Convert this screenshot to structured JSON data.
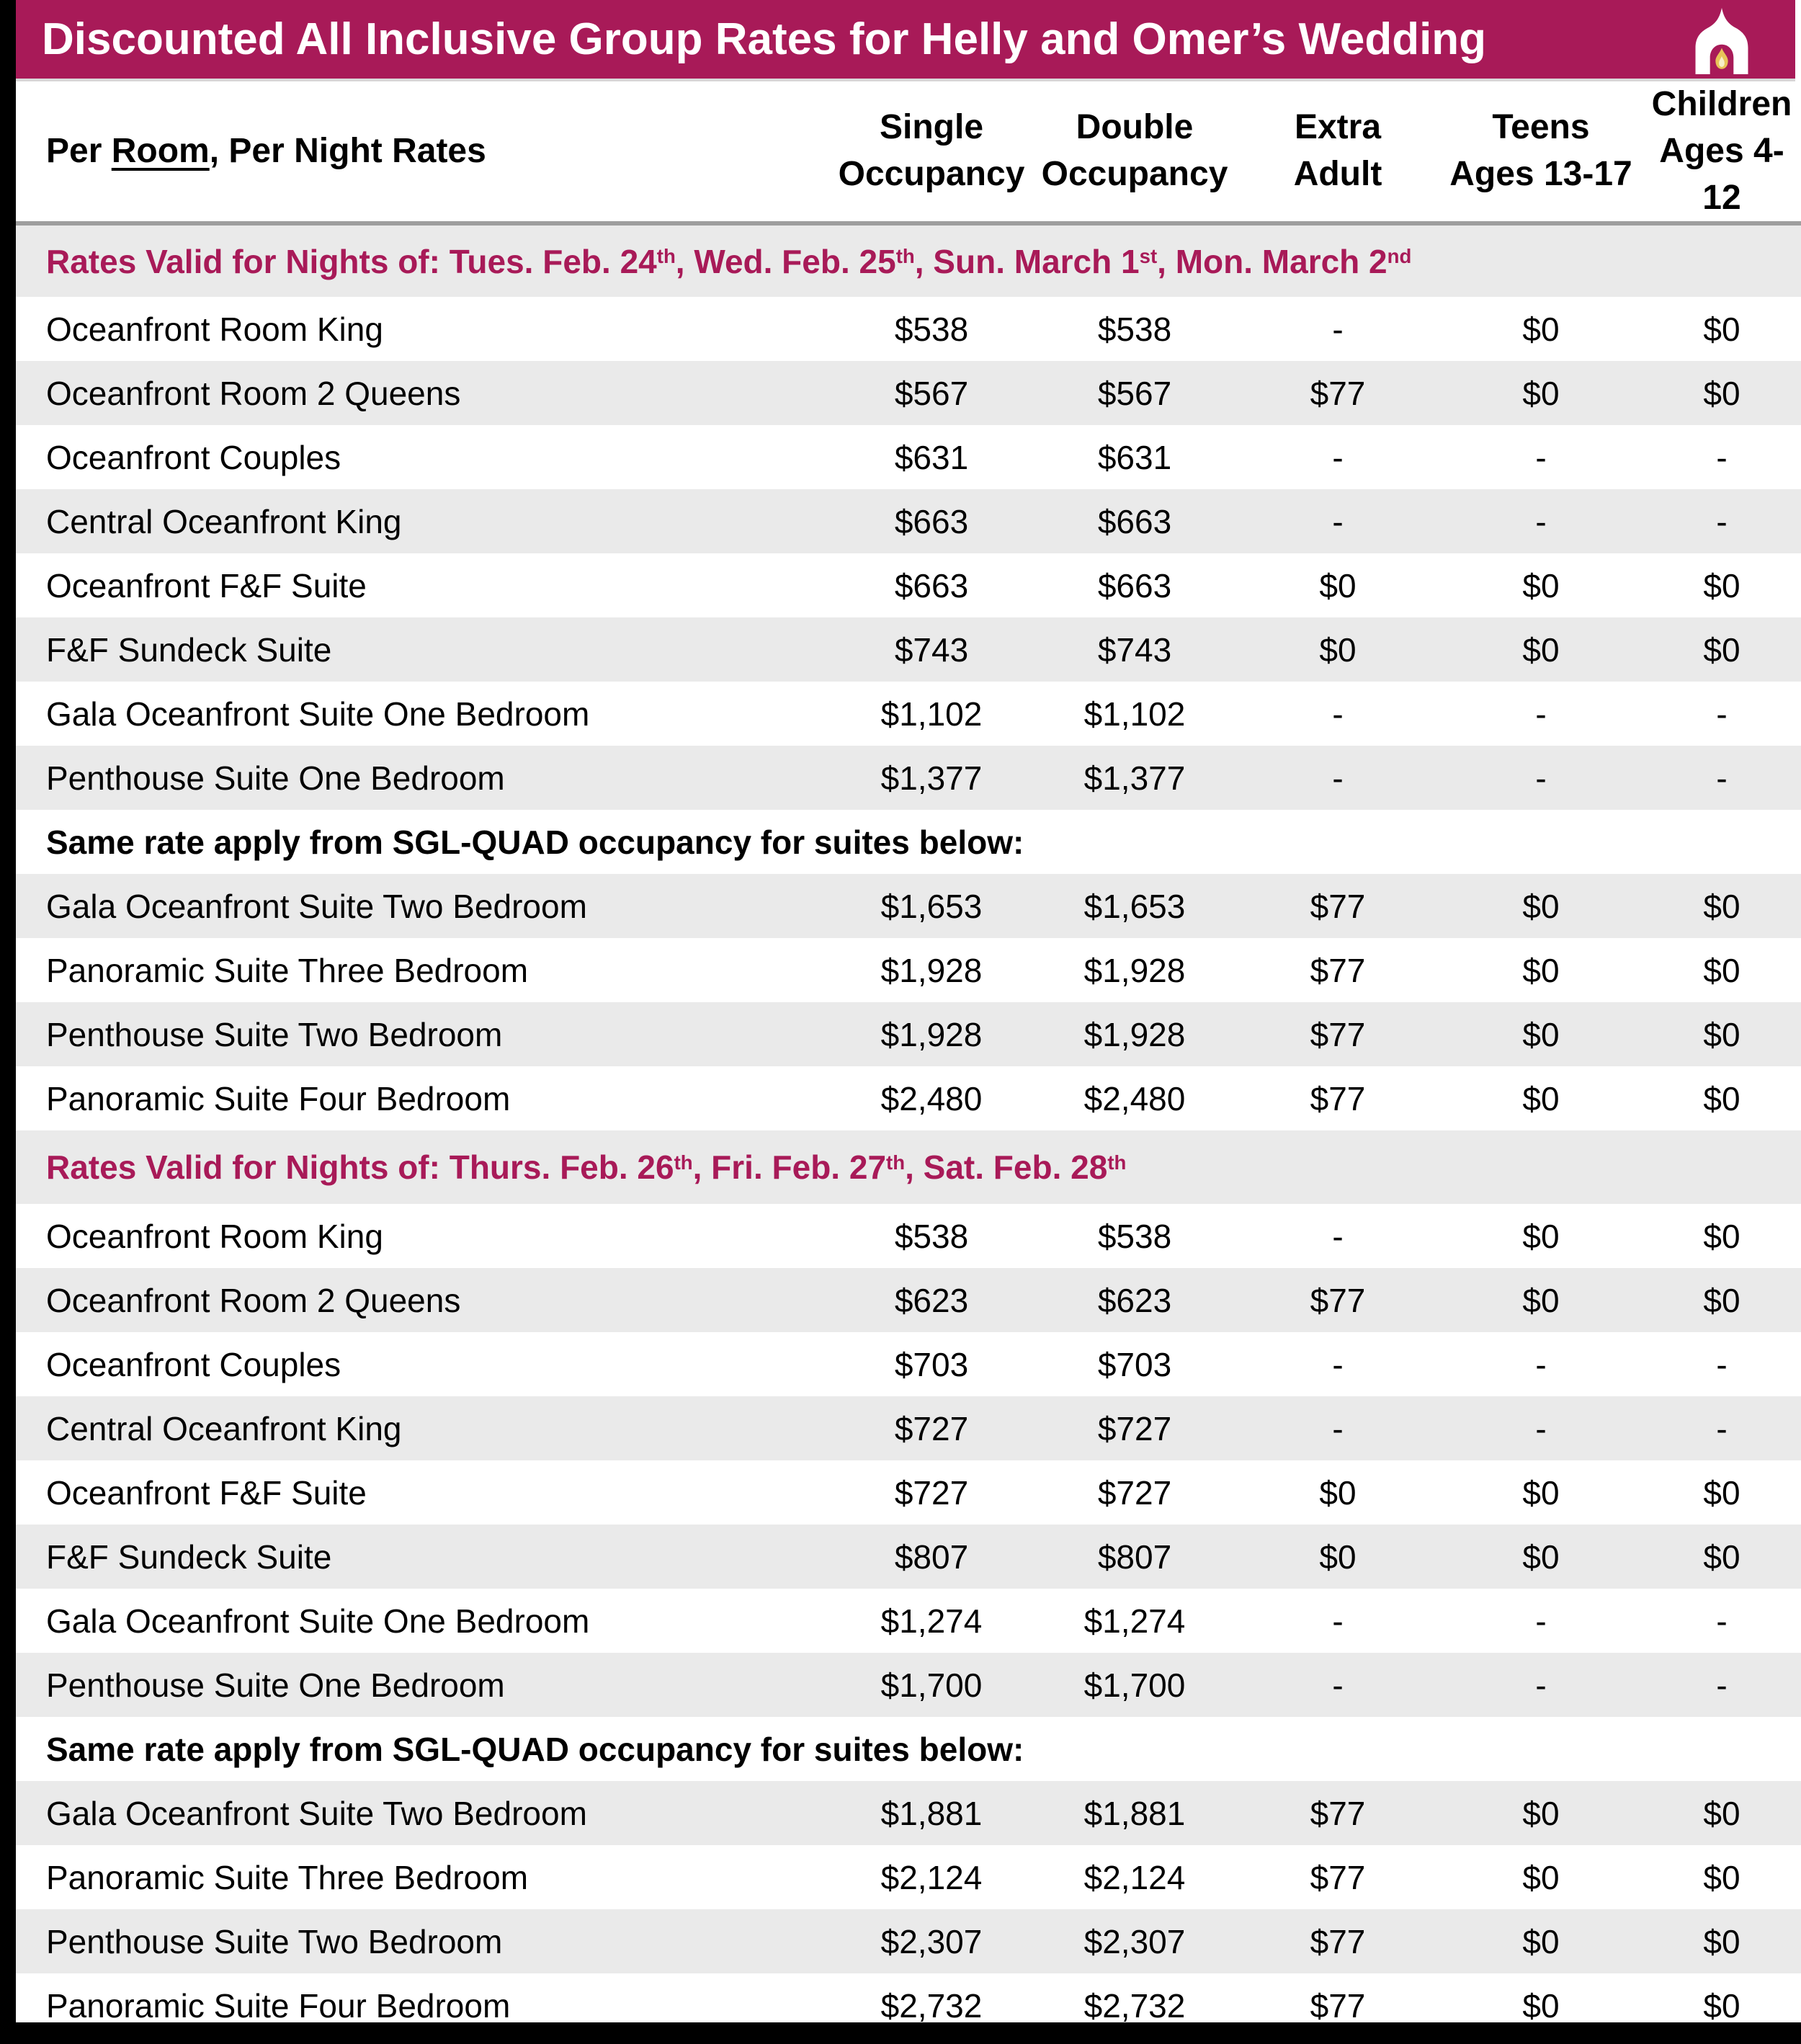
{
  "header": {
    "title": "Discounted All Inclusive Group Rates for Helly and Omer’s Wedding",
    "logo_icon": "arch-with-flame"
  },
  "colors": {
    "brand_magenta": "#A81A58",
    "row_alt_gray": "#EAEAEA",
    "header_divider_gray": "#9E9E9E",
    "flame_gold": "#E8C358",
    "flame_gold_light": "#F7EFC9",
    "frame_black": "#000000",
    "text_black": "#000000",
    "title_text_white": "#FFFFFF"
  },
  "columns": {
    "room_label": {
      "pre": "Per ",
      "underline": "Room",
      "post": ", Per Night Rates"
    },
    "rate_columns": [
      {
        "line1": "Single",
        "line2": "Occupancy"
      },
      {
        "line1": "Double",
        "line2": "Occupancy"
      },
      {
        "line1": "Extra",
        "line2": "Adult"
      },
      {
        "line1": "Teens",
        "line2": "Ages 13-17"
      },
      {
        "line1": "Children",
        "line2": "Ages 4-12"
      }
    ]
  },
  "sections": [
    {
      "title_segments": [
        {
          "text": "Rates Valid for Nights of: Tues. Feb. 24"
        },
        {
          "text": "th",
          "sup": true
        },
        {
          "text": ", Wed. Feb. 25"
        },
        {
          "text": "th",
          "sup": true
        },
        {
          "text": ", Sun. March 1"
        },
        {
          "text": "st",
          "sup": true
        },
        {
          "text": ", Mon. March 2"
        },
        {
          "text": "nd",
          "sup": true
        }
      ],
      "rows": [
        {
          "name": "Oceanfront Room King",
          "values": [
            "$538",
            "$538",
            "-",
            "$0",
            "$0"
          ]
        },
        {
          "name": "Oceanfront Room 2 Queens",
          "values": [
            "$567",
            "$567",
            "$77",
            "$0",
            "$0"
          ]
        },
        {
          "name": "Oceanfront Couples",
          "values": [
            "$631",
            "$631",
            "-",
            "-",
            "-"
          ]
        },
        {
          "name": "Central Oceanfront King",
          "values": [
            "$663",
            "$663",
            "-",
            "-",
            "-"
          ]
        },
        {
          "name": "Oceanfront F&F Suite",
          "values": [
            "$663",
            "$663",
            "$0",
            "$0",
            "$0"
          ]
        },
        {
          "name": "F&F Sundeck Suite",
          "values": [
            "$743",
            "$743",
            "$0",
            "$0",
            "$0"
          ]
        },
        {
          "name": "Gala Oceanfront Suite One Bedroom",
          "values": [
            "$1,102",
            "$1,102",
            "-",
            "-",
            "-"
          ]
        },
        {
          "name": "Penthouse Suite One Bedroom",
          "values": [
            "$1,377",
            "$1,377",
            "-",
            "-",
            "-"
          ]
        }
      ],
      "note": "Same rate apply from SGL-QUAD occupancy for suites below:",
      "suite_rows": [
        {
          "name": "Gala Oceanfront Suite Two Bedroom",
          "values": [
            "$1,653",
            "$1,653",
            "$77",
            "$0",
            "$0"
          ]
        },
        {
          "name": "Panoramic Suite Three Bedroom",
          "values": [
            "$1,928",
            "$1,928",
            "$77",
            "$0",
            "$0"
          ]
        },
        {
          "name": "Penthouse Suite Two Bedroom",
          "values": [
            "$1,928",
            "$1,928",
            "$77",
            "$0",
            "$0"
          ]
        },
        {
          "name": "Panoramic Suite Four Bedroom",
          "values": [
            "$2,480",
            "$2,480",
            "$77",
            "$0",
            "$0"
          ]
        }
      ]
    },
    {
      "title_segments": [
        {
          "text": "Rates Valid for Nights of: Thurs. Feb. 26"
        },
        {
          "text": "th",
          "sup": true
        },
        {
          "text": ", Fri. Feb. 27"
        },
        {
          "text": "th",
          "sup": true
        },
        {
          "text": ", Sat. Feb. 28"
        },
        {
          "text": "th",
          "sup": true
        }
      ],
      "rows": [
        {
          "name": "Oceanfront Room King",
          "values": [
            "$538",
            "$538",
            "-",
            "$0",
            "$0"
          ]
        },
        {
          "name": "Oceanfront Room 2 Queens",
          "values": [
            "$623",
            "$623",
            "$77",
            "$0",
            "$0"
          ]
        },
        {
          "name": "Oceanfront Couples",
          "values": [
            "$703",
            "$703",
            "-",
            "-",
            "-"
          ]
        },
        {
          "name": "Central Oceanfront King",
          "values": [
            "$727",
            "$727",
            "-",
            "-",
            "-"
          ]
        },
        {
          "name": "Oceanfront F&F Suite",
          "values": [
            "$727",
            "$727",
            "$0",
            "$0",
            "$0"
          ]
        },
        {
          "name": "F&F Sundeck Suite",
          "values": [
            "$807",
            "$807",
            "$0",
            "$0",
            "$0"
          ]
        },
        {
          "name": "Gala Oceanfront Suite One Bedroom",
          "values": [
            "$1,274",
            "$1,274",
            "-",
            "-",
            "-"
          ]
        },
        {
          "name": "Penthouse Suite One Bedroom",
          "values": [
            "$1,700",
            "$1,700",
            "-",
            "-",
            "-"
          ]
        }
      ],
      "note": "Same rate apply from SGL-QUAD occupancy for suites below:",
      "suite_rows": [
        {
          "name": "Gala Oceanfront Suite Two Bedroom",
          "values": [
            "$1,881",
            "$1,881",
            "$77",
            "$0",
            "$0"
          ]
        },
        {
          "name": "Panoramic Suite Three Bedroom",
          "values": [
            "$2,124",
            "$2,124",
            "$77",
            "$0",
            "$0"
          ]
        },
        {
          "name": "Penthouse Suite Two Bedroom",
          "values": [
            "$2,307",
            "$2,307",
            "$77",
            "$0",
            "$0"
          ]
        },
        {
          "name": "Panoramic Suite Four Bedroom",
          "values": [
            "$2,732",
            "$2,732",
            "$77",
            "$0",
            "$0"
          ]
        }
      ]
    }
  ]
}
